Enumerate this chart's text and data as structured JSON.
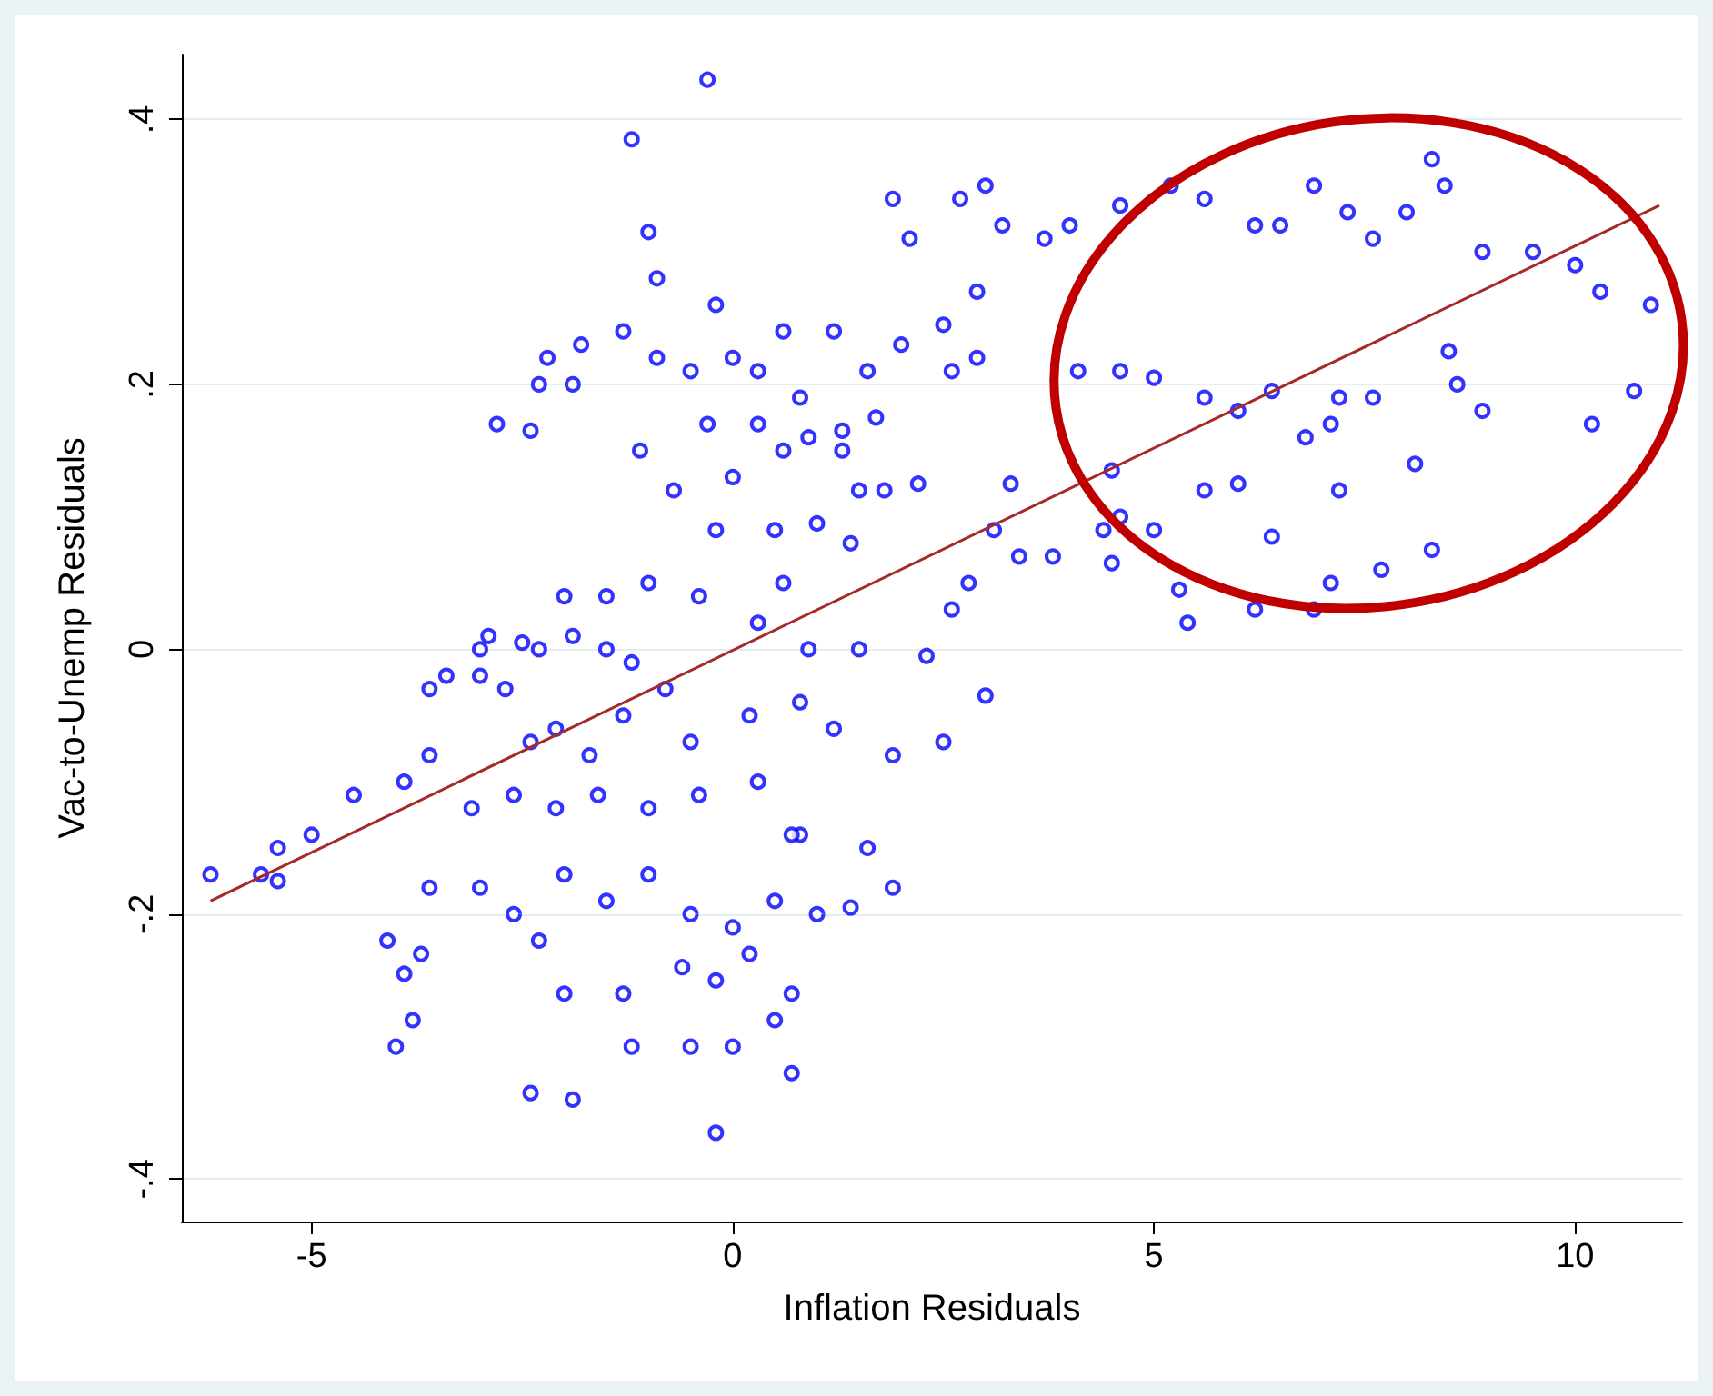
{
  "chart_data": {
    "type": "scatter",
    "xlabel": "Inflation Residuals",
    "ylabel": "Vac-to-Unemp Residuals",
    "xlim": [
      -6.54,
      11.27
    ],
    "ylim": [
      -0.432,
      0.449
    ],
    "xticks": [
      -5,
      0,
      5,
      10
    ],
    "yticks": [
      {
        "value": -0.4,
        "label": "-.4"
      },
      {
        "value": -0.2,
        "label": "-.2"
      },
      0,
      {
        "value": 0.2,
        "label": ".2"
      },
      {
        "value": 0.4,
        "label": ".4"
      }
    ],
    "grid": "y",
    "series": [
      {
        "marker": "circle",
        "color": "#0000ff",
        "x": [
          5.2,
          5.6,
          6.2,
          6.5,
          6.9,
          7.3,
          7.6,
          8.0,
          8.3,
          8.45,
          8.9,
          9.5,
          10.0,
          10.3,
          10.9,
          10.7,
          10.2,
          8.9,
          8.6,
          8.5,
          8.1,
          8.3,
          7.7,
          7.2,
          7.1,
          6.9,
          6.2,
          6.4,
          6.0,
          5.6,
          5.4,
          5.3,
          5.0,
          4.6,
          4.5,
          4.4,
          4.5,
          5.6,
          6.0,
          6.4,
          6.8,
          7.2,
          7.6,
          7.1,
          4.1,
          5.0,
          4.6,
          3.7,
          3.0,
          2.7,
          2.1,
          1.9,
          2.9,
          3.2,
          4.0,
          4.6,
          2.5,
          2.6,
          2.9,
          2.0,
          1.6,
          1.7,
          2.2,
          3.3,
          3.1,
          3.4,
          3.8,
          2.8,
          2.6,
          2.3,
          2.5,
          1.9,
          1.6,
          1.9,
          3.0,
          1.5,
          1.8,
          1.3,
          -0.3,
          -1.2,
          -1.0,
          -0.9,
          -0.2,
          0,
          0.3,
          -0.5,
          -0.9,
          0.6,
          1.2,
          0.8,
          0.9,
          1.3,
          -1.3,
          -1.1,
          -0.7,
          -0.2,
          0.5,
          1.0,
          0.6,
          0.3,
          -0.4,
          -1.0,
          -1.5,
          -1.9,
          -1.2,
          -0.8,
          -1.3,
          -0.5,
          0.2,
          0.8,
          1.2,
          -1.7,
          -2.1,
          -2.4,
          -2.7,
          -3.0,
          -3.4,
          -3.6,
          -2.3,
          -2.9,
          -2.6,
          -2.1,
          -1.6,
          -1.0,
          -0.4,
          0.3,
          0.8,
          -3.1,
          -3.6,
          -3.9,
          -4.5,
          -5.0,
          -5.4,
          -5.6,
          -6.2,
          -5.4,
          -4.1,
          -3.7,
          -3.6,
          -3.0,
          -2.6,
          -2.0,
          -1.5,
          -1.0,
          -0.5,
          0,
          0.5,
          1.0,
          1.4,
          0.7,
          -0.6,
          -0.2,
          0.2,
          0.7,
          -1.3,
          -2.0,
          -2.3,
          -4.0,
          -3.9,
          -3.8,
          -2.4,
          -1.9,
          -0.2,
          -0.5,
          0,
          -1.2,
          0.7,
          0.5,
          -2.3,
          -2.4,
          -2.2,
          -1.8,
          -2.8,
          -1.9,
          -2.0,
          -3.0,
          -2.5,
          -1.5,
          0.6,
          0.3,
          0.0,
          -0.3,
          1.5,
          1.4,
          0.9
        ],
        "values": [
          0.35,
          0.34,
          0.32,
          0.32,
          0.35,
          0.33,
          0.31,
          0.33,
          0.37,
          0.35,
          0.3,
          0.3,
          0.29,
          0.27,
          0.26,
          0.195,
          0.17,
          0.18,
          0.2,
          0.225,
          0.14,
          0.075,
          0.06,
          0.12,
          0.05,
          0.03,
          0.03,
          0.085,
          0.125,
          0.12,
          0.02,
          0.045,
          0.09,
          0.1,
          0.065,
          0.09,
          0.135,
          0.19,
          0.18,
          0.195,
          0.16,
          0.19,
          0.19,
          0.17,
          0.21,
          0.205,
          0.21,
          0.31,
          0.35,
          0.34,
          0.31,
          0.34,
          0.27,
          0.32,
          0.32,
          0.335,
          0.245,
          0.21,
          0.22,
          0.23,
          0.21,
          0.175,
          0.125,
          0.125,
          0.09,
          0.07,
          0.07,
          0.05,
          0.03,
          -0.005,
          -0.07,
          -0.08,
          -0.15,
          -0.18,
          -0.035,
          0.0,
          0.12,
          0.15,
          0.43,
          0.385,
          0.315,
          0.28,
          0.26,
          0.22,
          0.21,
          0.21,
          0.22,
          0.24,
          0.24,
          0.19,
          0.16,
          0.165,
          0.24,
          0.15,
          0.12,
          0.09,
          0.09,
          0.095,
          0.05,
          0.02,
          0.04,
          0.05,
          0.04,
          0.01,
          -0.01,
          -0.03,
          -0.05,
          -0.07,
          -0.05,
          -0.04,
          -0.06,
          -0.08,
          -0.06,
          -0.07,
          -0.03,
          -0.02,
          -0.02,
          -0.03,
          0.0,
          0.01,
          -0.11,
          -0.12,
          -0.11,
          -0.12,
          -0.11,
          -0.1,
          -0.14,
          -0.12,
          -0.08,
          -0.1,
          -0.11,
          -0.14,
          -0.15,
          -0.17,
          -0.17,
          -0.175,
          -0.22,
          -0.23,
          -0.18,
          -0.18,
          -0.2,
          -0.17,
          -0.19,
          -0.17,
          -0.2,
          -0.21,
          -0.19,
          -0.2,
          -0.195,
          -0.14,
          -0.24,
          -0.25,
          -0.23,
          -0.26,
          -0.26,
          -0.26,
          -0.22,
          -0.3,
          -0.245,
          -0.28,
          -0.335,
          -0.34,
          -0.365,
          -0.3,
          -0.3,
          -0.3,
          -0.32,
          -0.28,
          0.2,
          0.165,
          0.22,
          0.23,
          0.17,
          0.2,
          0.04,
          0.0,
          0.005,
          0.0,
          0.15,
          0.17,
          0.13,
          0.17,
          0.12,
          0.08,
          0.0
        ]
      },
      {
        "type": "line",
        "marker": "none",
        "color": "#a52a2a",
        "x": [
          -6.2,
          11.0
        ],
        "values": [
          -0.19,
          0.335
        ]
      }
    ]
  }
}
